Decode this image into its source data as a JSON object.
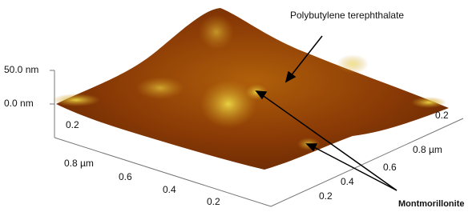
{
  "annotations": {
    "matrix": "Polybutylene terephthalate",
    "filler": "Montmorillonite"
  },
  "z_axis": {
    "labels": [
      "50.0 nm",
      "0.0 nm"
    ]
  },
  "back_axis": {
    "labels": [
      "0.2",
      "0.2"
    ]
  },
  "left_axis": {
    "labels": [
      "0.8 µm",
      "0.6",
      "0.4",
      "0.2"
    ]
  },
  "right_axis": {
    "labels": [
      "0.2",
      "0.4",
      "0.6",
      "0.8 µm"
    ]
  }
}
